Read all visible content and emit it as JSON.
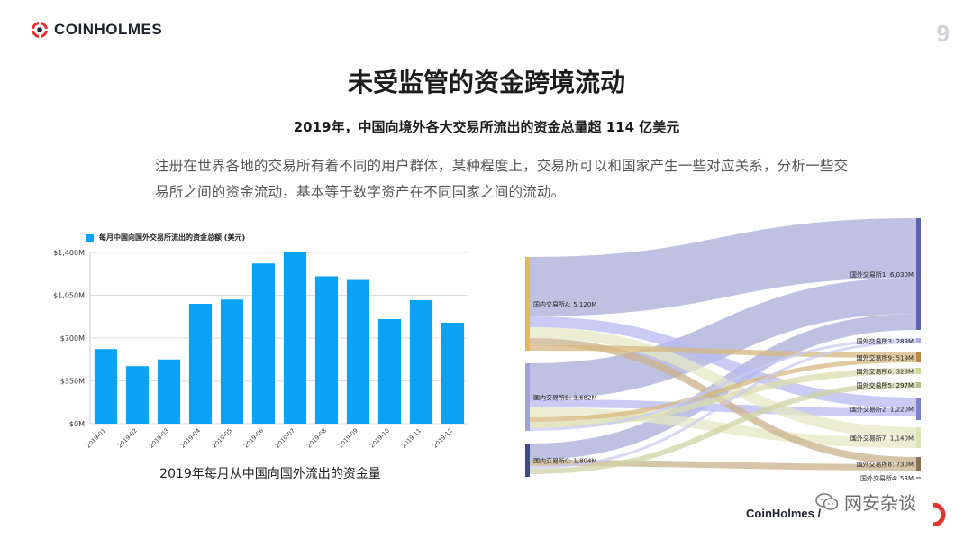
{
  "brand": {
    "name": "COINHOLMES",
    "accent": "#e5322b"
  },
  "page_number": "9",
  "title": "未受监管的资金跨境流动",
  "subtitle": "2019年，中国向境外各大交易所流出的资金总量超 114 亿美元",
  "paragraph": "注册在世界各地的交易所有着不同的用户群体，某种程度上，交易所可以和国家产生一些对应关系，分析一些交易所之间的资金流动，基本等于数字资产在不同国家之间的流动。",
  "bar_caption": "2019年每月从中国向国外流出的资金量",
  "footer_brand": "CoinHolmes /",
  "watermark_text": "网安杂谈",
  "chart_data": [
    {
      "type": "bar",
      "legend": "每月中国向国外交易所流出的资金总额 (美元)",
      "legend_placement": "top-left",
      "categories": [
        "2019-01",
        "2019-02",
        "2019-03",
        "2019-04",
        "2019-05",
        "2019-06",
        "2019-07",
        "2019-08",
        "2019-09",
        "2019-10",
        "2019-11",
        "2019-12"
      ],
      "values": [
        610,
        470,
        525,
        980,
        1015,
        1310,
        1400,
        1205,
        1175,
        855,
        1010,
        825
      ],
      "ylim": [
        0,
        1400
      ],
      "yticks": [
        0,
        350,
        700,
        1050,
        1400
      ],
      "ytick_labels": [
        "$0M",
        "$350M",
        "$700M",
        "$1,050M",
        "$1,400M"
      ],
      "grid": true,
      "color": "#0aa2f2"
    },
    {
      "type": "sankey",
      "sources": [
        {
          "label": "国内交易所A: 5,120M",
          "value": 5120,
          "color": "#e8b75a"
        },
        {
          "label": "国内交易所B: 3,682M",
          "value": 3682,
          "color": "#9fa3d9"
        },
        {
          "label": "国内交易所C: 1,804M",
          "value": 1804,
          "color": "#3f4a8a"
        }
      ],
      "targets": [
        {
          "label": "国外交易所1: 6,030M",
          "value": 6030,
          "color": "#5b62b0"
        },
        {
          "label": "国外交易所3: 289M",
          "value": 289,
          "color": "#a9acea"
        },
        {
          "label": "国外交易所9: 519M",
          "value": 519,
          "color": "#b98a44"
        },
        {
          "label": "国外交易所6: 328M",
          "value": 328,
          "color": "#cfd79a"
        },
        {
          "label": "国外交易所5: 297M",
          "value": 297,
          "color": "#b8c08a"
        },
        {
          "label": "国外交易所2: 1,220M",
          "value": 1220,
          "color": "#7c80cf"
        },
        {
          "label": "国外交易所7: 1,140M",
          "value": 1140,
          "color": "#dde3b4"
        },
        {
          "label": "国外交易所8: 730M",
          "value": 730,
          "color": "#8a7050"
        },
        {
          "label": "国外交易所4: 53M",
          "value": 53,
          "color": "#9aa0a8"
        }
      ]
    }
  ]
}
